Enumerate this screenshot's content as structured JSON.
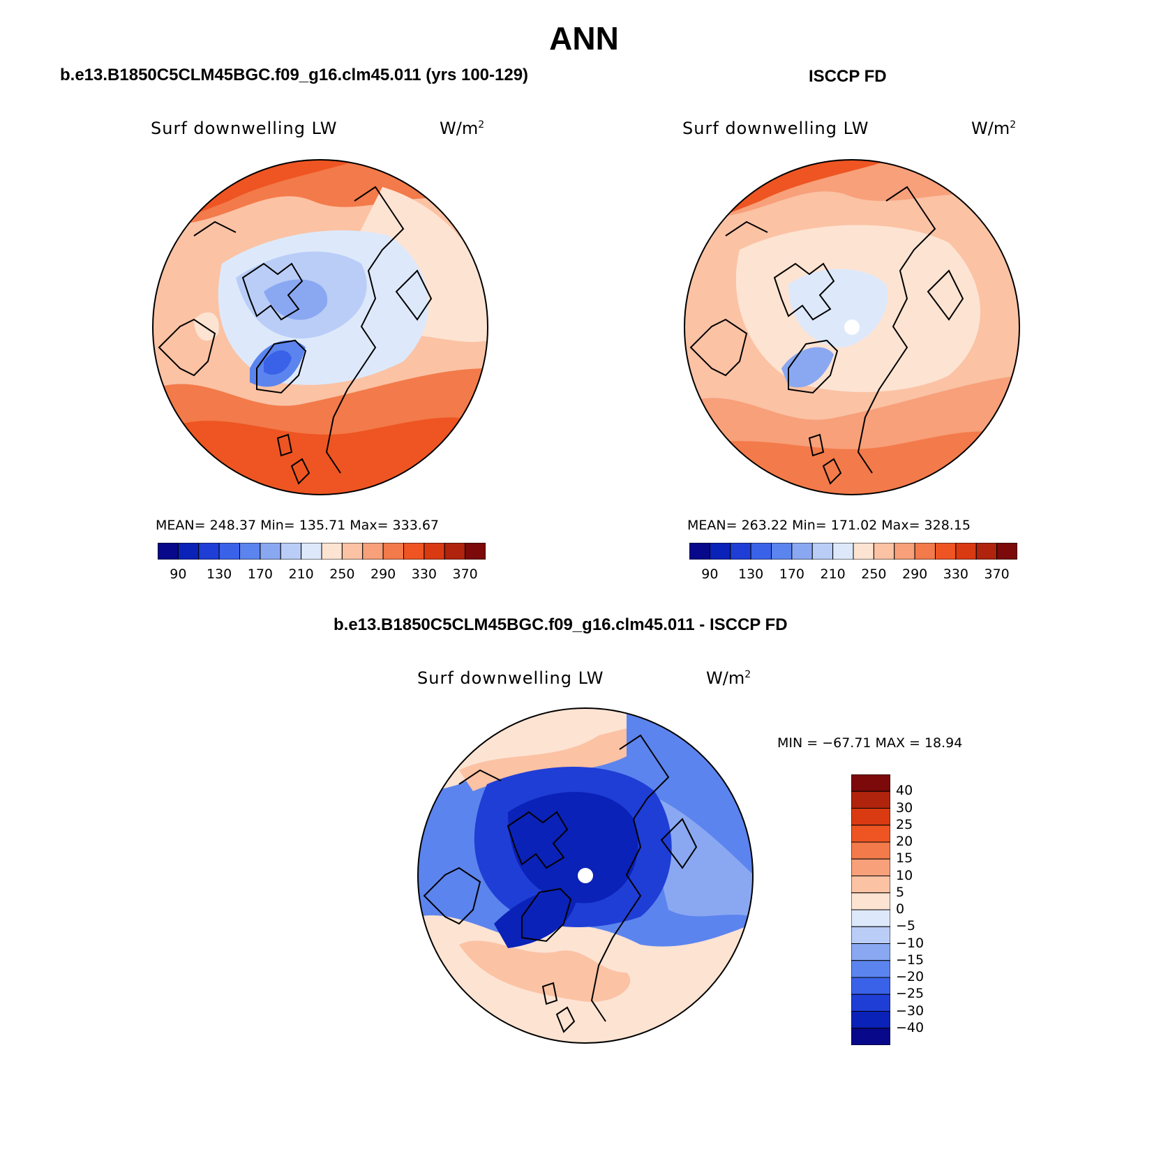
{
  "figure": {
    "title": "ANN",
    "bottom_title": "b.e13.B1850C5CLM45BGC.f09_g16.clm45.011 - ISCCP FD"
  },
  "chart_data": [
    {
      "type": "heatmap",
      "panel": "model",
      "title": "b.e13.B1850C5CLM45BGC.f09_g16.clm45.011 (yrs 100-129)",
      "variable": "Surf downwelling LW",
      "units": "W/m",
      "units_superscript": "2",
      "projection": "north polar stereographic",
      "stats": {
        "mean": "248.37",
        "min": "135.71",
        "max": "333.67",
        "text": "MEAN= 248.37   Min= 135.71   Max= 333.67"
      },
      "levels": [
        90,
        110,
        130,
        150,
        170,
        190,
        210,
        230,
        250,
        270,
        290,
        310,
        330,
        350,
        370
      ],
      "tick_labels": [
        "90",
        "130",
        "170",
        "210",
        "250",
        "290",
        "330",
        "370"
      ],
      "colors": [
        "#08088a",
        "#0a22b8",
        "#1f3ed6",
        "#3a62e8",
        "#5c84ee",
        "#8aa8f2",
        "#b9cdf7",
        "#dde9fb",
        "#fde3d2",
        "#fbc2a4",
        "#f7a07a",
        "#f37a4a",
        "#ee5522",
        "#d93a12",
        "#b0230c",
        "#7c0a0a"
      ]
    },
    {
      "type": "heatmap",
      "panel": "obs",
      "title": "ISCCP FD",
      "variable": "Surf downwelling LW",
      "units": "W/m",
      "units_superscript": "2",
      "projection": "north polar stereographic",
      "stats": {
        "mean": "263.22",
        "min": "171.02",
        "max": "328.15",
        "text": "MEAN= 263.22   Min= 171.02   Max= 328.15"
      },
      "levels": [
        90,
        110,
        130,
        150,
        170,
        190,
        210,
        230,
        250,
        270,
        290,
        310,
        330,
        350,
        370
      ],
      "tick_labels": [
        "90",
        "130",
        "170",
        "210",
        "250",
        "290",
        "330",
        "370"
      ],
      "colors": [
        "#08088a",
        "#0a22b8",
        "#1f3ed6",
        "#3a62e8",
        "#5c84ee",
        "#8aa8f2",
        "#b9cdf7",
        "#dde9fb",
        "#fde3d2",
        "#fbc2a4",
        "#f7a07a",
        "#f37a4a",
        "#ee5522",
        "#d93a12",
        "#b0230c",
        "#7c0a0a"
      ]
    },
    {
      "type": "heatmap",
      "panel": "difference",
      "title": "b.e13.B1850C5CLM45BGC.f09_g16.clm45.011 - ISCCP FD",
      "variable": "Surf downwelling LW",
      "units": "W/m",
      "units_superscript": "2",
      "projection": "north polar stereographic",
      "stats": {
        "min": "−67.71",
        "max": "18.94",
        "text": "MIN = −67.71 MAX =   18.94"
      },
      "levels": [
        -40,
        -30,
        -25,
        -20,
        -15,
        -10,
        -5,
        0,
        5,
        10,
        15,
        20,
        25,
        30,
        40
      ],
      "tick_labels": [
        "40",
        "30",
        "25",
        "20",
        "15",
        "10",
        "5",
        "0",
        "−5",
        "−10",
        "−15",
        "−20",
        "−25",
        "−30",
        "−40"
      ],
      "colors": [
        "#7c0a0a",
        "#b0230c",
        "#d93a12",
        "#ee5522",
        "#f37a4a",
        "#f7a07a",
        "#fbc2a4",
        "#fde3d2",
        "#dde9fb",
        "#b9cdf7",
        "#8aa8f2",
        "#5c84ee",
        "#3a62e8",
        "#1f3ed6",
        "#0a22b8",
        "#08088a"
      ]
    }
  ]
}
